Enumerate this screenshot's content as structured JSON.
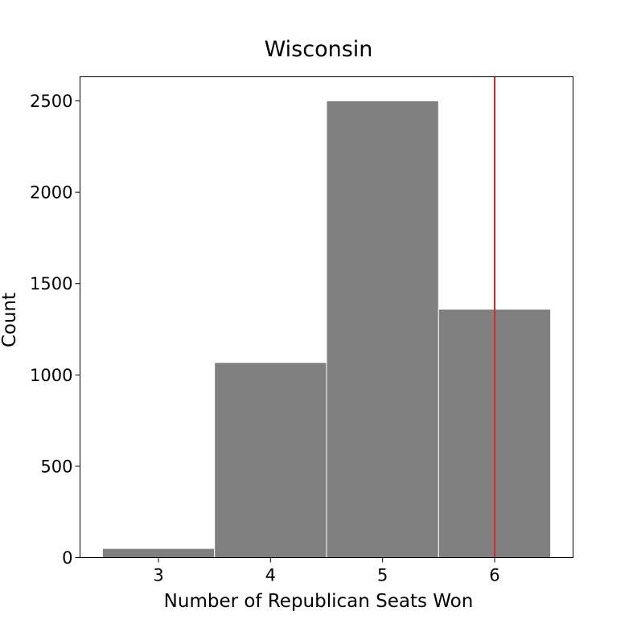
{
  "chart_data": {
    "type": "bar",
    "title": "Wisconsin",
    "xlabel": "Number of Republican Seats Won",
    "ylabel": "Count",
    "categories": [
      3,
      4,
      5,
      6
    ],
    "values": [
      50,
      1068,
      2500,
      1360
    ],
    "xlim": [
      2.3,
      6.7
    ],
    "ylim": [
      0,
      2632
    ],
    "yticks": [
      0,
      500,
      1000,
      1500,
      2000,
      2500
    ],
    "xticks": [
      3,
      4,
      5,
      6
    ],
    "reference_line": {
      "x": 6,
      "color": "#d62728"
    },
    "bar_color": "#808080",
    "bar_edge_color": "#ffffff",
    "grid": false,
    "legend": "none"
  }
}
